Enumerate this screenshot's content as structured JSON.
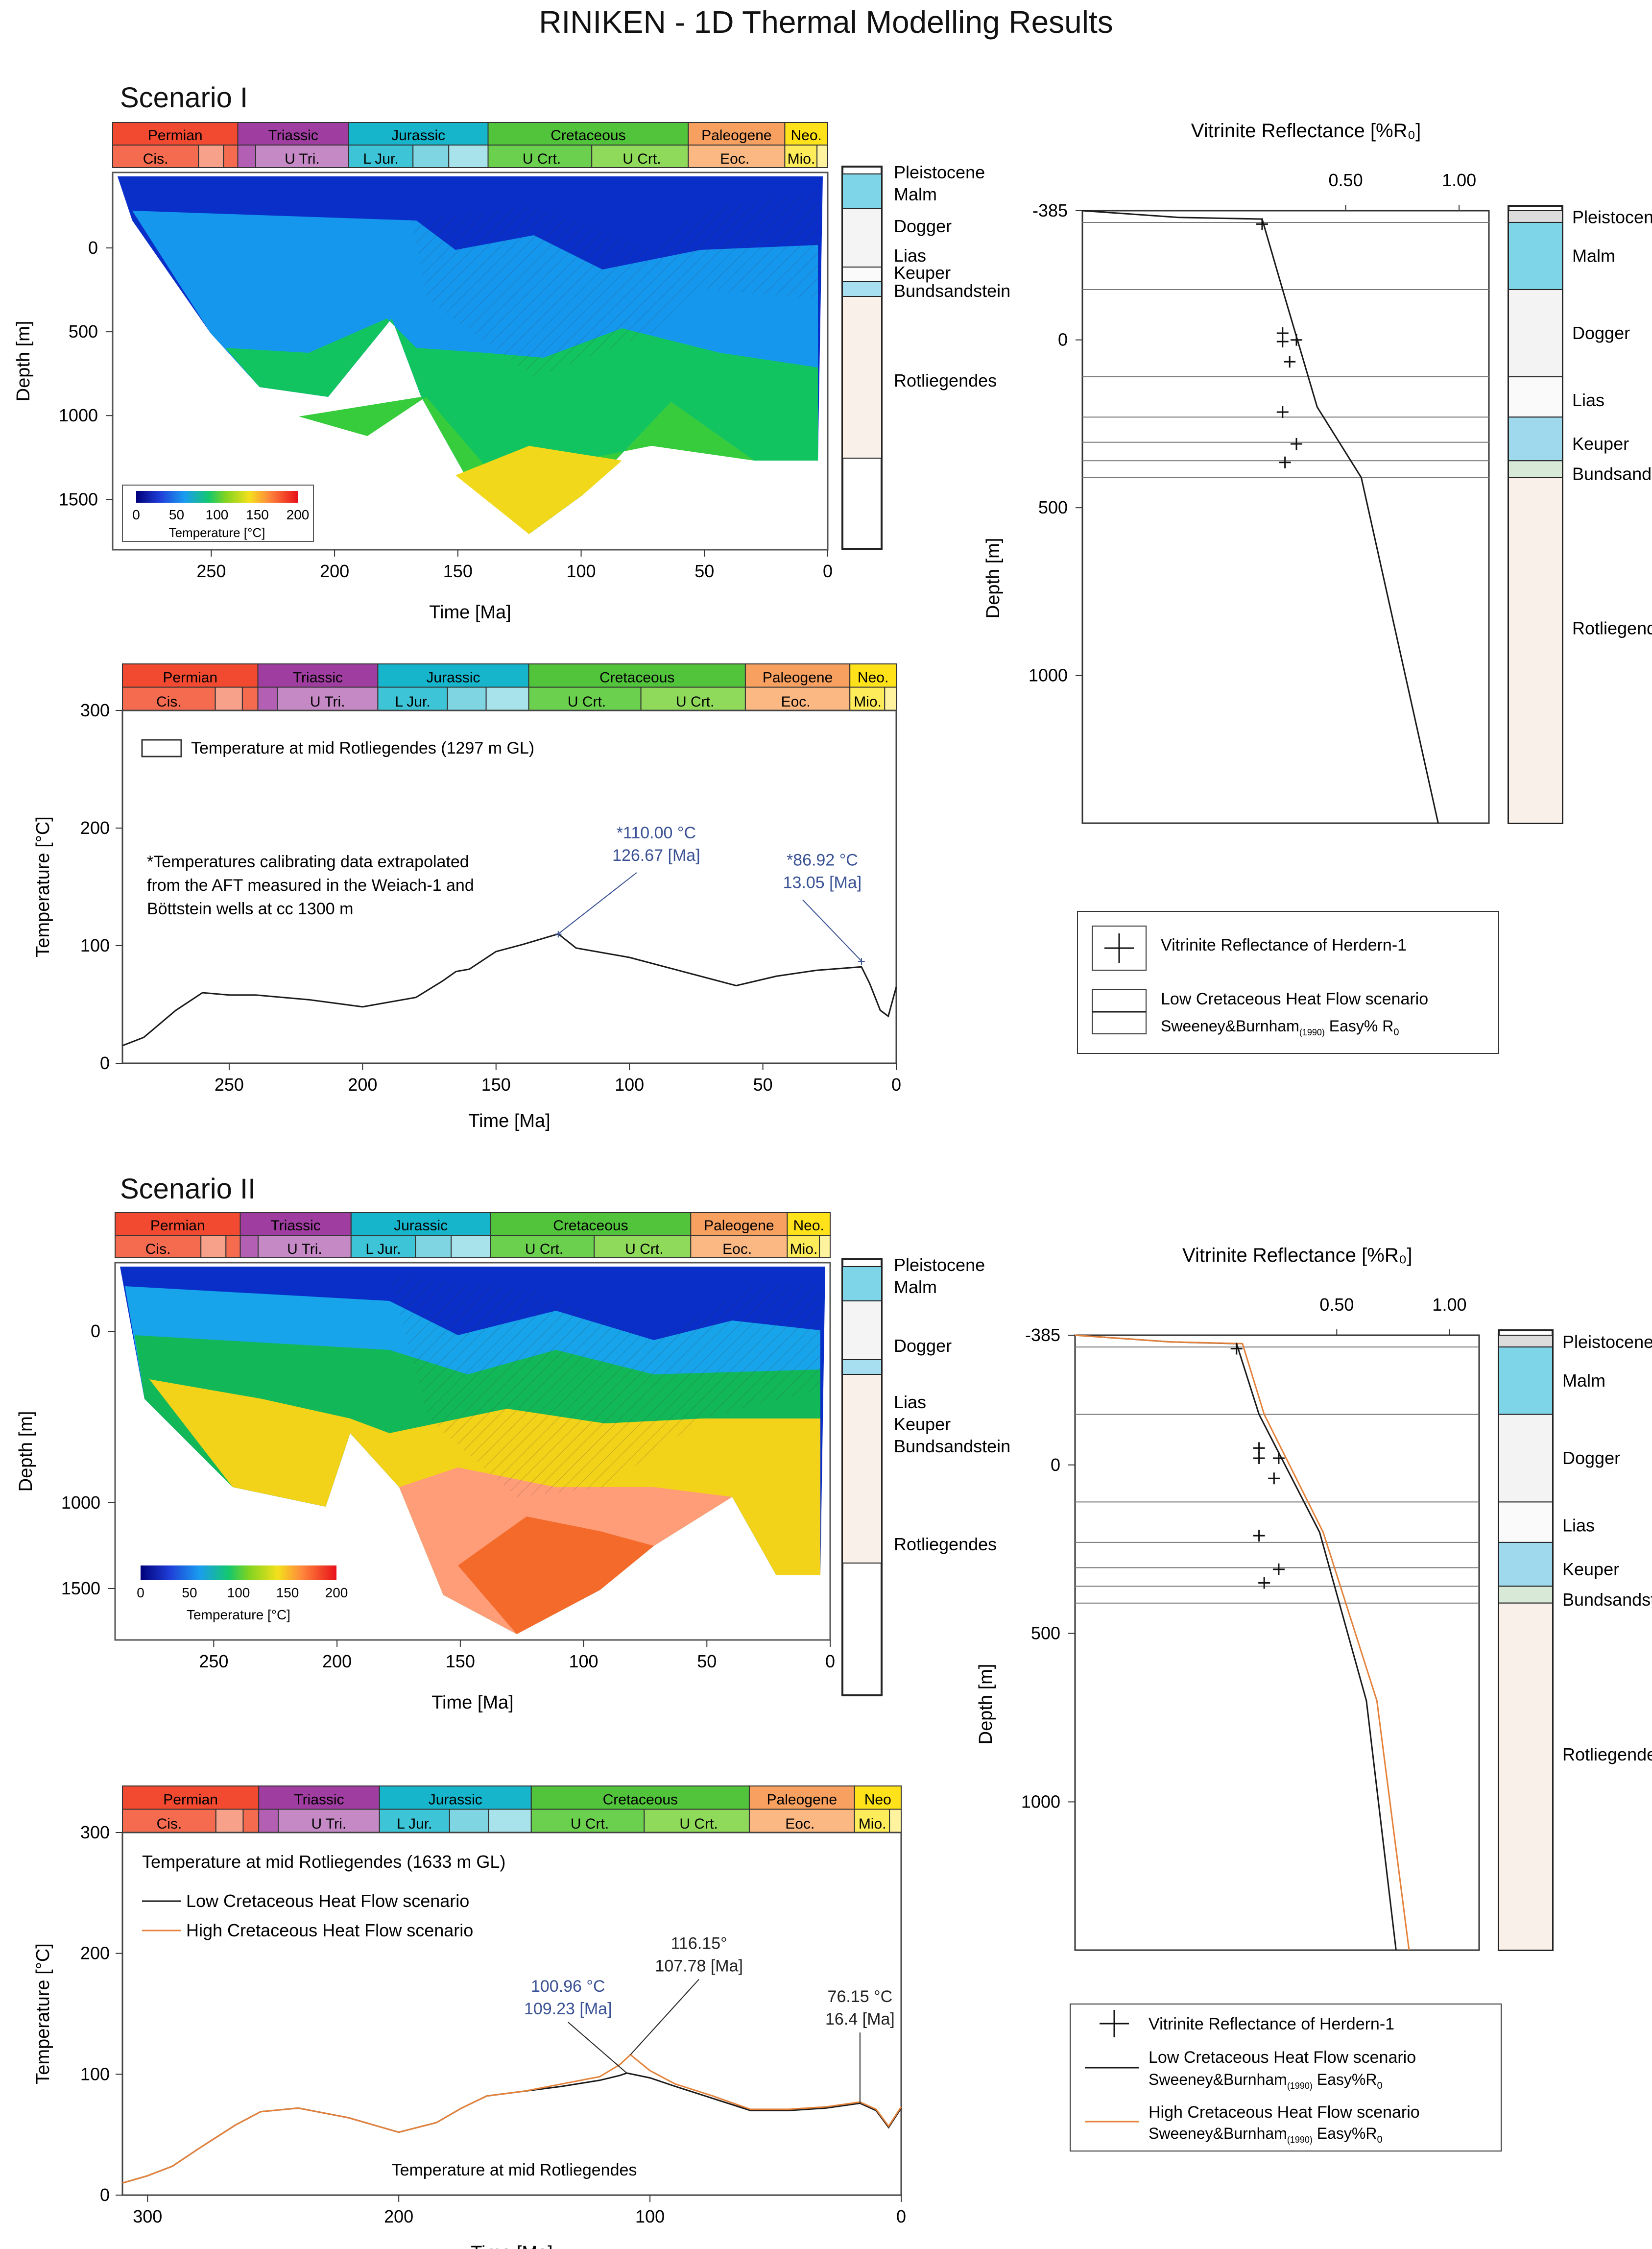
{
  "page_title": "RINIKEN -  1D Thermal Modelling Results",
  "scenario1_label": "Scenario I",
  "scenario2_label": "Scenario II",
  "colors": {
    "permian": "#f24a31",
    "triassic": "#9f3ea0",
    "jurassic": "#16b5cb",
    "cretaceous": "#52c43b",
    "paleogene": "#f8a060",
    "neogene": "#ffe21a",
    "low_curve": "#1a1a1a",
    "high_curve": "#e4823b",
    "annot": "#3a5295"
  },
  "geotime": {
    "row1": [
      "Permian",
      "Triassic",
      "Jurassic",
      "Cretaceous",
      "Paleogene",
      "Neo."
    ],
    "row2": [
      "Cis.",
      "U Tri.",
      "L Jur.",
      "U Crt.",
      "U Crt.",
      "Eoc.",
      "Mio."
    ]
  },
  "geotime_s2b": {
    "row1": [
      "Permian",
      "Triassic",
      "Jurassic",
      "Cretaceous",
      "Paleogene",
      "Neo"
    ],
    "row2": [
      "Cis.",
      "U Tri.",
      "L Jur.",
      "U Crt.",
      "U Crt.",
      "Eoc.",
      "Mio."
    ]
  },
  "colorbar": {
    "ticks": [
      "0",
      "50",
      "100",
      "150",
      "200"
    ],
    "label": "Temperature [°C]"
  },
  "strat_labels_s1": [
    "Pleistocene",
    "Malm",
    "Dogger",
    "Lias",
    "Keuper",
    "Bundsandstein",
    "Rotliegendes"
  ],
  "strat_labels_s2": [
    "Pleistocene",
    "Malm",
    "Dogger",
    "Lias",
    "Keuper",
    "Bundsandstein",
    "Rotliegendes"
  ],
  "chart_data": [
    {
      "id": "s1_burial",
      "type": "heatmap",
      "title": "Scenario I",
      "xlabel": "Time [Ma]",
      "ylabel": "Depth [m]",
      "xlim": [
        290,
        0
      ],
      "ylim": [
        1800,
        -450
      ],
      "x_ticks": [
        "250",
        "200",
        "150",
        "100",
        "50",
        "0"
      ],
      "y_ticks": [
        "0",
        "500",
        "1000",
        "1500"
      ],
      "colorbar_range": [
        0,
        200
      ],
      "max_burial_depth_m": 1820,
      "max_burial_time_ma": 110
    },
    {
      "id": "s1_temp",
      "type": "line",
      "xlabel": "Time [Ma]",
      "ylabel": "Temperature [°C]",
      "xlim": [
        290,
        0
      ],
      "ylim": [
        0,
        300
      ],
      "x_ticks": [
        "250",
        "200",
        "150",
        "100",
        "50",
        "0"
      ],
      "y_ticks": [
        "0",
        "100",
        "200",
        "300"
      ],
      "legend": [
        "Temperature at mid Rotliegendes (1297 m GL)"
      ],
      "note": [
        "*Temperatures calibrating data extrapolated",
        "from the AFT measured in the Weiach-1  and",
        "Böttstein wells at cc 1300 m"
      ],
      "annotations": [
        {
          "line1": "*110.00 °C",
          "line2": "126.67 [Ma]",
          "x": 126.67,
          "y": 110
        },
        {
          "line1": "*86.92 °C",
          "line2": "13.05 [Ma]",
          "x": 13.05,
          "y": 86.92
        }
      ],
      "series": [
        {
          "name": "Temperature at mid Rotliegendes (1297 m GL)",
          "x": [
            290,
            282,
            270,
            260,
            250,
            240,
            220,
            200,
            180,
            170,
            165,
            160,
            150,
            140,
            126.67,
            120,
            100,
            80,
            60,
            45,
            30,
            13.05,
            10,
            6,
            3,
            0
          ],
          "y": [
            15,
            22,
            45,
            60,
            58,
            58,
            54,
            48,
            56,
            70,
            78,
            80,
            95,
            101,
            110,
            98,
            90,
            78,
            66,
            74,
            79,
            82,
            68,
            45,
            40,
            65
          ]
        }
      ]
    },
    {
      "id": "s1_vr",
      "type": "scatter",
      "title": "Vitrinite Reflectance [%R₀]",
      "xlabel": "Vitrinite Reflectance [%R₀]",
      "ylabel": "Depth [m]",
      "x_scale": "log",
      "xlim": [
        0.1,
        1.2
      ],
      "ylim": [
        1440,
        -385
      ],
      "x_ticks": [
        "0.50",
        "1.00"
      ],
      "y_ticks": [
        "-385",
        "0",
        "500",
        "1000"
      ],
      "legend": [
        "Vitrinite Reflectance of Herdern-1",
        "Low Cretaceous Heat Flow scenario",
        "Sweeney&Burnham",
        "(1990)",
        " Easy% R",
        "0"
      ],
      "measured": {
        "x": [
          0.3,
          0.34,
          0.34,
          0.37,
          0.355,
          0.34,
          0.37,
          0.345
        ],
        "y": [
          -345,
          5,
          -20,
          0,
          65,
          215,
          310,
          365
        ]
      },
      "series": [
        {
          "name": "Low Cretaceous Heat Flow scenario",
          "x": [
            0.1,
            0.18,
            0.3,
            0.34,
            0.42,
            0.55,
            0.88
          ],
          "y": [
            -385,
            -365,
            -360,
            -150,
            200,
            410,
            1440
          ]
        }
      ]
    },
    {
      "id": "s2_burial",
      "type": "heatmap",
      "title": "Scenario II",
      "xlabel": "Time [Ma]",
      "ylabel": "Depth [m]",
      "xlim": [
        290,
        0
      ],
      "ylim": [
        1800,
        -400
      ],
      "x_ticks": [
        "250",
        "200",
        "150",
        "100",
        "50",
        "0"
      ],
      "y_ticks": [
        "0",
        "1000",
        "1500"
      ],
      "colorbar_range": [
        0,
        200
      ],
      "max_burial_depth_m": 1800,
      "max_burial_time_ma": 110
    },
    {
      "id": "s2_temp",
      "type": "line",
      "xlabel": "Time [Ma]",
      "ylabel": "Temperature [°C]",
      "xlim": [
        310,
        0
      ],
      "ylim": [
        0,
        300
      ],
      "x_ticks": [
        "300",
        "200",
        "100",
        "0"
      ],
      "y_ticks": [
        "0",
        "100",
        "200",
        "300"
      ],
      "title": "Temperature at mid Rotliegendes (1633 m GL)",
      "bottom_label": "Temperature at mid Rotliegendes",
      "legend": [
        "Low Cretaceous Heat Flow scenario",
        "High Cretaceous Heat Flow scenario"
      ],
      "annotations": [
        {
          "line1": "100.96 °C",
          "line2": "109.23 [Ma]",
          "x": 109.23,
          "y": 100.96
        },
        {
          "line1": "116.15°",
          "line2": "107.78 [Ma]",
          "x": 107.78,
          "y": 116.15
        },
        {
          "line1": "76.15 °C",
          "line2": "16.4 [Ma]",
          "x": 16.4,
          "y": 76.15
        }
      ],
      "series": [
        {
          "name": "Low Cretaceous Heat Flow scenario",
          "x": [
            310,
            300,
            290,
            280,
            265,
            255,
            240,
            220,
            200,
            185,
            175,
            165,
            150,
            135,
            120,
            112,
            109.23,
            100,
            90,
            75,
            60,
            45,
            30,
            16.4,
            10,
            5,
            0
          ],
          "y": [
            10,
            16,
            24,
            38,
            58,
            69,
            72,
            64,
            52,
            60,
            72,
            82,
            86,
            90,
            95,
            99,
            100.96,
            97,
            90,
            80,
            70,
            70,
            72,
            76,
            70,
            56,
            72
          ]
        },
        {
          "name": "High Cretaceous Heat Flow scenario",
          "x": [
            310,
            300,
            290,
            280,
            265,
            255,
            240,
            220,
            200,
            185,
            175,
            165,
            150,
            135,
            120,
            112,
            107.78,
            100,
            90,
            75,
            60,
            45,
            30,
            16.4,
            10,
            5,
            0
          ],
          "y": [
            10,
            16,
            24,
            38,
            58,
            69,
            72,
            64,
            52,
            60,
            72,
            82,
            86,
            92,
            98,
            108,
            116.15,
            103,
            92,
            82,
            71,
            71,
            73,
            77,
            71,
            57,
            73
          ]
        }
      ]
    },
    {
      "id": "s2_vr",
      "type": "scatter",
      "title": "Vitrinite Reflectance [%R₀]",
      "xlabel": "Vitrinite Reflectance [%R₀]",
      "ylabel": "Depth [m]",
      "x_scale": "log",
      "xlim": [
        0.1,
        1.2
      ],
      "ylim": [
        1440,
        -385
      ],
      "x_ticks": [
        "0.50",
        "1.00"
      ],
      "y_ticks": [
        "-385",
        "0",
        "500",
        "1000"
      ],
      "legend": [
        "Vitrinite Reflectance of Herdern-1",
        "Low Cretaceous Heat Flow scenario",
        "High Cretaceous Heat Flow scenario"
      ],
      "legend_sub": [
        "Sweeney&Burnham",
        "(1990)",
        " Easy%R",
        "0"
      ],
      "measured": {
        "x": [
          0.27,
          0.31,
          0.31,
          0.35,
          0.34,
          0.31,
          0.35,
          0.32
        ],
        "y": [
          -345,
          -50,
          -20,
          -20,
          40,
          210,
          310,
          350
        ]
      },
      "series": [
        {
          "name": "Low Cretaceous Heat Flow scenario",
          "x": [
            0.1,
            0.18,
            0.27,
            0.31,
            0.45,
            0.6,
            0.72
          ],
          "y": [
            -385,
            -365,
            -360,
            -150,
            200,
            700,
            1440
          ]
        },
        {
          "name": "High Cretaceous Heat Flow scenario",
          "x": [
            0.1,
            0.18,
            0.28,
            0.32,
            0.46,
            0.64,
            0.78
          ],
          "y": [
            -385,
            -365,
            -360,
            -150,
            200,
            700,
            1440
          ]
        }
      ]
    }
  ]
}
